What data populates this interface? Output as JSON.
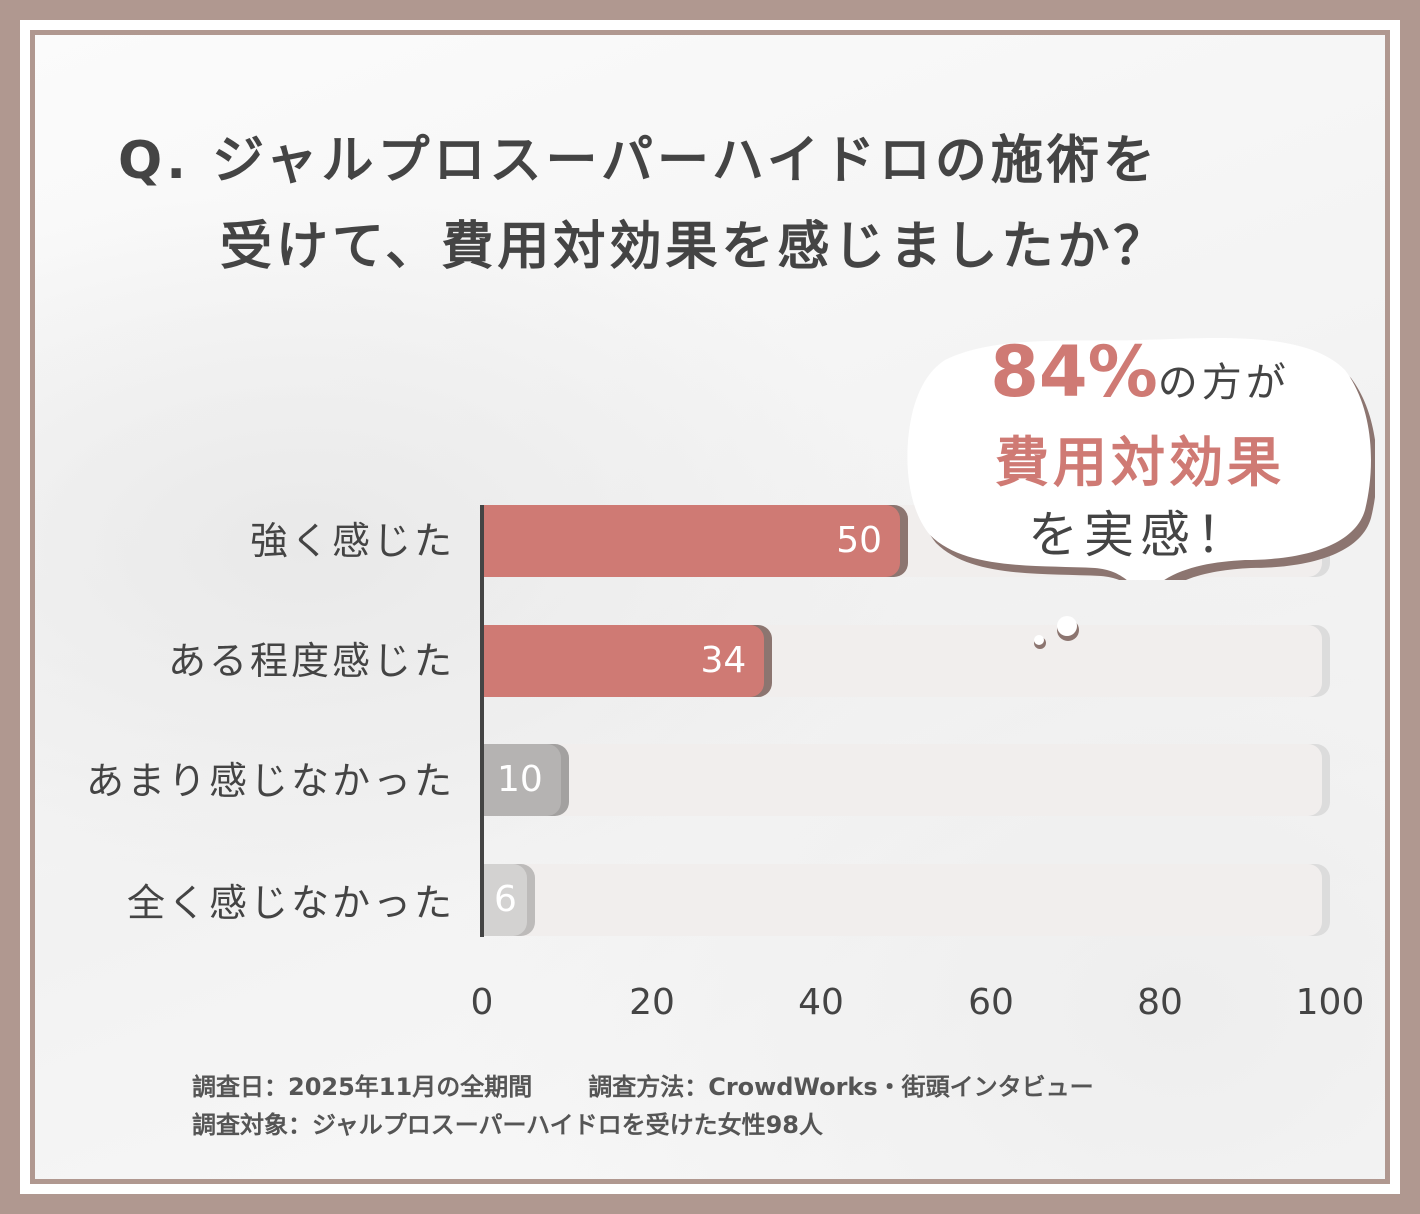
{
  "title": {
    "line1": "Q. ジャルプロスーパーハイドロの施術を",
    "line2": "受けて、費用対効果を感じましたか？"
  },
  "callout": {
    "percent": "84%",
    "line1_suffix": "の方が",
    "line2": "費用対効果",
    "line3": "を実感！"
  },
  "colors": {
    "accent": "#cf7a74",
    "accent_shadow": "#8c7570",
    "gray_bar": "#b5b3b2",
    "light_gray_bar": "#d3d2d1",
    "track": "#f1eeed",
    "frame": "#b09890",
    "text": "#444444"
  },
  "chart_data": {
    "type": "bar",
    "orientation": "horizontal",
    "title": "Q. ジャルプロスーパーハイドロの施術を受けて、費用対効果を感じましたか？",
    "categories": [
      "強く感じた",
      "ある程度感じた",
      "あまり感じなかった",
      "全く感じなかった"
    ],
    "values": [
      50,
      34,
      10,
      6
    ],
    "value_labels": [
      "50",
      "34",
      "10",
      "6"
    ],
    "xlim": [
      0,
      100
    ],
    "xticks": [
      "0",
      "20",
      "40",
      "60",
      "80",
      "100"
    ],
    "xlabel": "",
    "ylabel": "",
    "grid": false,
    "legend": null,
    "annotation": "84%の方が費用対効果を実感！"
  },
  "footer": {
    "date": "調査日：2025年11月の全期間",
    "method": "調査方法：CrowdWorks・街頭インタビュー",
    "target": "調査対象：ジャルプロスーパーハイドロを受けた女性98人"
  }
}
